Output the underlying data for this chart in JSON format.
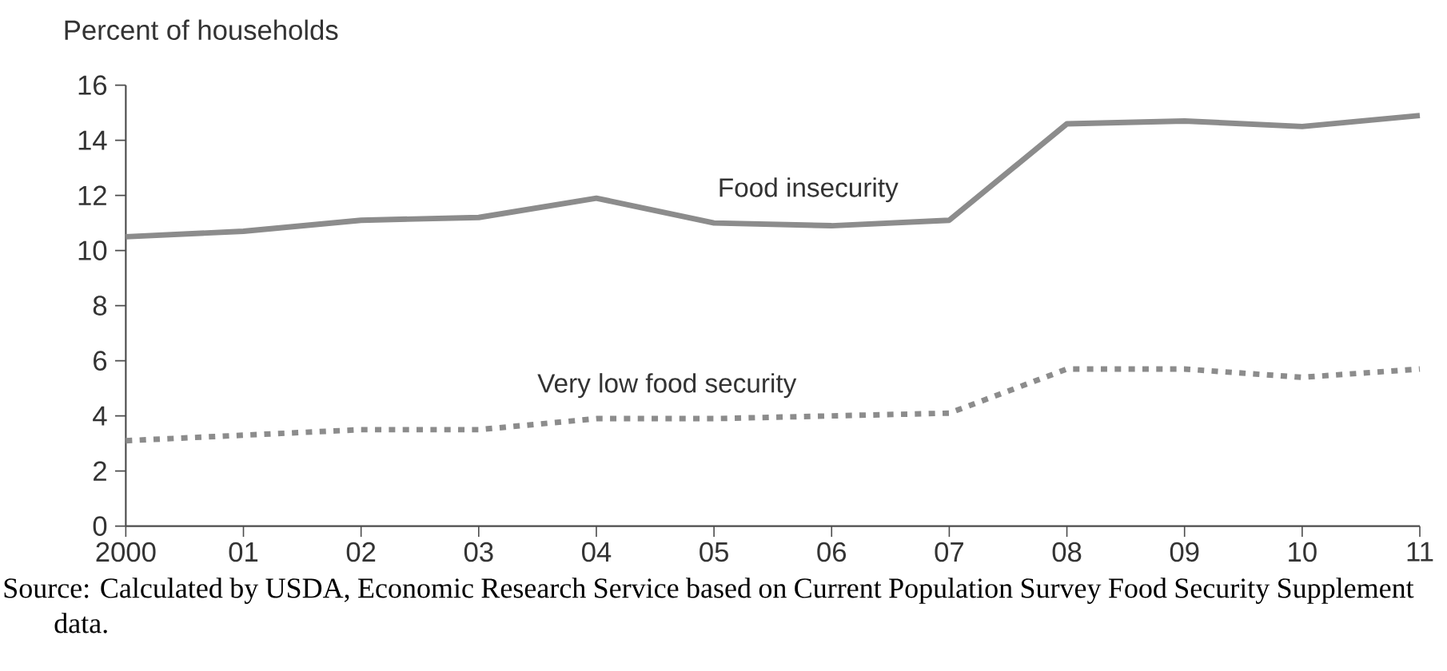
{
  "chart_data": {
    "type": "line",
    "ylabel": "Percent of households",
    "categories": [
      "2000",
      "01",
      "02",
      "03",
      "04",
      "05",
      "06",
      "07",
      "08",
      "09",
      "10",
      "11"
    ],
    "series": [
      {
        "name": "Food insecurity",
        "color": "#8c8c8c",
        "line_style": "solid",
        "values": [
          10.5,
          10.7,
          11.1,
          11.2,
          11.9,
          11.0,
          10.9,
          11.1,
          14.6,
          14.7,
          14.5,
          14.9
        ]
      },
      {
        "name": "Very low food security",
        "color": "#8c8c8c",
        "line_style": "dotted",
        "values": [
          3.1,
          3.3,
          3.5,
          3.5,
          3.9,
          3.9,
          4.0,
          4.1,
          5.7,
          5.7,
          5.4,
          5.7
        ]
      }
    ],
    "ylim": [
      0,
      16
    ],
    "yticks": [
      0,
      2,
      4,
      6,
      8,
      10,
      12,
      14,
      16
    ],
    "marker": "none",
    "annotations": [
      "Source: Calculated by USDA, Economic Research Service based on Current Population Survey Food Security Supplement data."
    ]
  }
}
